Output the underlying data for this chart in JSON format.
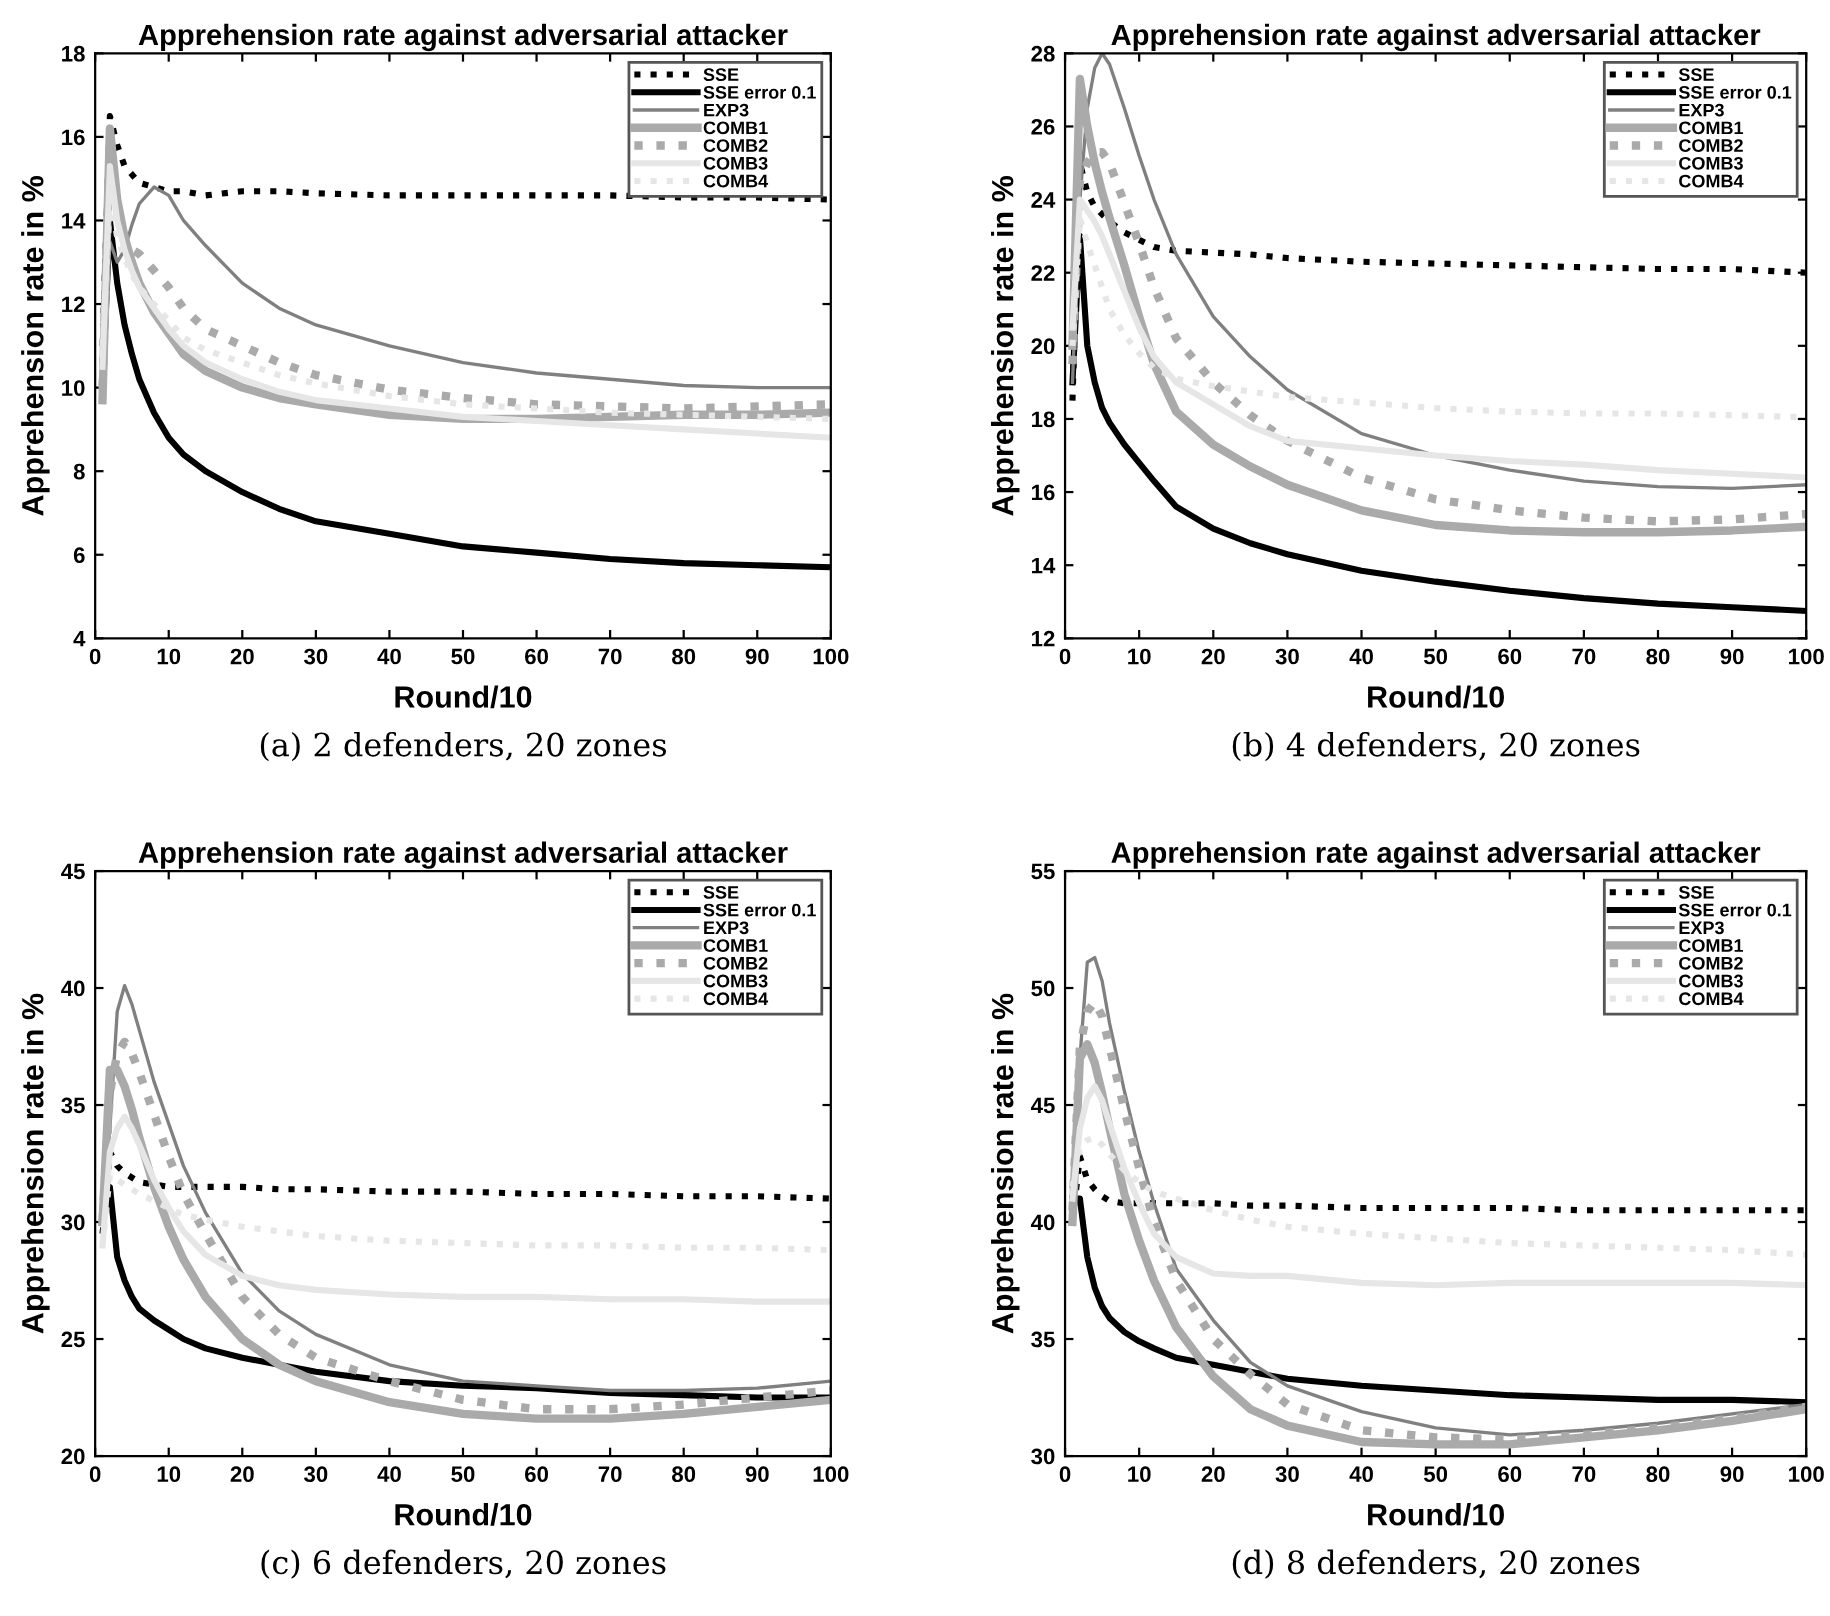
{
  "chart_data": [
    {
      "type": "line",
      "title": "Apprehension rate against adversarial attacker",
      "xlabel": "Round/10",
      "ylabel": "Apprehension rate in %",
      "annotations": [
        "(a) 2 defenders, 20 zones"
      ],
      "legend": "top right",
      "grid": false,
      "xlim": [
        0,
        100
      ],
      "xticks": [
        0,
        10,
        20,
        30,
        40,
        50,
        60,
        70,
        80,
        90,
        100
      ],
      "ylim": [
        4,
        18
      ],
      "yticks": [
        4,
        6,
        8,
        10,
        12,
        14,
        16,
        18
      ],
      "x": [
        1,
        2,
        3,
        4,
        5,
        6,
        8,
        10,
        12,
        15,
        20,
        25,
        30,
        40,
        50,
        60,
        70,
        80,
        90,
        100
      ],
      "series": [
        {
          "name": "SSE",
          "color": "#000000",
          "line_style": "dotted",
          "values": [
            11,
            16.5,
            15.8,
            15.3,
            15.1,
            14.9,
            14.8,
            14.7,
            14.7,
            14.6,
            14.7,
            14.7,
            14.65,
            14.6,
            14.6,
            14.6,
            14.6,
            14.55,
            14.55,
            14.5
          ]
        },
        {
          "name": "SSE error 0.1",
          "color": "#000000",
          "line_style": "solid",
          "values": [
            10,
            14,
            12.5,
            11.5,
            10.8,
            10.2,
            9.4,
            8.8,
            8.4,
            8.0,
            7.5,
            7.1,
            6.8,
            6.5,
            6.2,
            6.05,
            5.9,
            5.8,
            5.75,
            5.7
          ]
        },
        {
          "name": "EXP3",
          "color": "#808080",
          "line_style": "solid",
          "values": [
            9.7,
            13.5,
            13.0,
            13.3,
            13.9,
            14.4,
            14.8,
            14.6,
            14.0,
            13.4,
            12.5,
            11.9,
            11.5,
            11.0,
            10.6,
            10.35,
            10.2,
            10.05,
            10.0,
            10.0
          ]
        },
        {
          "name": "COMB1",
          "color": "#aaaaaa",
          "line_style": "solid",
          "values": [
            9.7,
            16.2,
            14.5,
            13.6,
            13.0,
            12.5,
            11.8,
            11.3,
            10.8,
            10.4,
            10.0,
            9.75,
            9.6,
            9.35,
            9.25,
            9.25,
            9.3,
            9.35,
            9.35,
            9.4
          ]
        },
        {
          "name": "COMB2",
          "color": "#aaaaaa",
          "line_style": "dotted",
          "values": [
            10,
            15.8,
            14.2,
            13.6,
            13.3,
            13.2,
            12.8,
            12.4,
            11.9,
            11.4,
            11.0,
            10.6,
            10.3,
            9.95,
            9.75,
            9.6,
            9.55,
            9.5,
            9.55,
            9.6
          ]
        },
        {
          "name": "COMB3",
          "color": "#e6e6e6",
          "line_style": "solid",
          "values": [
            10.5,
            15.3,
            14.0,
            13.3,
            12.8,
            12.4,
            11.9,
            11.4,
            11.0,
            10.6,
            10.2,
            9.9,
            9.7,
            9.5,
            9.3,
            9.2,
            9.1,
            9.0,
            8.9,
            8.8
          ]
        },
        {
          "name": "COMB4",
          "color": "#e6e6e6",
          "line_style": "dotted",
          "values": [
            11,
            14.5,
            13.6,
            13.1,
            12.7,
            12.4,
            12.0,
            11.6,
            11.2,
            10.9,
            10.6,
            10.3,
            10.1,
            9.8,
            9.6,
            9.5,
            9.4,
            9.35,
            9.3,
            9.25
          ]
        }
      ]
    },
    {
      "type": "line",
      "title": "Apprehension rate against adversarial attacker",
      "xlabel": "Round/10",
      "ylabel": "Apprehension rate in %",
      "annotations": [
        "(b) 4 defenders, 20 zones"
      ],
      "legend": "top right",
      "grid": false,
      "xlim": [
        0,
        100
      ],
      "xticks": [
        0,
        10,
        20,
        30,
        40,
        50,
        60,
        70,
        80,
        90,
        100
      ],
      "ylim": [
        12,
        28
      ],
      "yticks": [
        12,
        14,
        16,
        18,
        20,
        22,
        24,
        26,
        28
      ],
      "x": [
        1,
        2,
        3,
        4,
        5,
        6,
        8,
        10,
        12,
        15,
        20,
        25,
        30,
        40,
        50,
        60,
        70,
        80,
        90,
        100
      ],
      "series": [
        {
          "name": "SSE",
          "color": "#000000",
          "line_style": "dotted",
          "values": [
            18.5,
            25,
            24.2,
            23.8,
            23.6,
            23.4,
            23.1,
            22.9,
            22.7,
            22.6,
            22.55,
            22.5,
            22.4,
            22.3,
            22.25,
            22.2,
            22.15,
            22.1,
            22.1,
            22.0
          ]
        },
        {
          "name": "SSE error 0.1",
          "color": "#000000",
          "line_style": "solid",
          "values": [
            19,
            23,
            20,
            19,
            18.3,
            17.9,
            17.3,
            16.8,
            16.3,
            15.6,
            15.0,
            14.6,
            14.3,
            13.85,
            13.55,
            13.3,
            13.1,
            12.95,
            12.85,
            12.75
          ]
        },
        {
          "name": "EXP3",
          "color": "#808080",
          "line_style": "solid",
          "values": [
            19,
            24,
            26.5,
            27.6,
            28,
            27.7,
            26.5,
            25.2,
            24,
            22.5,
            20.8,
            19.7,
            18.8,
            17.6,
            17.0,
            16.6,
            16.3,
            16.15,
            16.1,
            16.2
          ]
        },
        {
          "name": "COMB1",
          "color": "#aaaaaa",
          "line_style": "solid",
          "values": [
            20,
            27.3,
            26,
            25,
            24.2,
            23.5,
            22.2,
            20.8,
            19.5,
            18.2,
            17.3,
            16.7,
            16.2,
            15.5,
            15.1,
            14.95,
            14.9,
            14.9,
            14.95,
            15.05
          ]
        },
        {
          "name": "COMB2",
          "color": "#aaaaaa",
          "line_style": "dotted",
          "values": [
            19.5,
            24.5,
            25,
            25.3,
            25.3,
            25,
            23.9,
            22.8,
            21.6,
            20.2,
            19.0,
            18.1,
            17.4,
            16.4,
            15.8,
            15.5,
            15.3,
            15.2,
            15.25,
            15.4
          ]
        },
        {
          "name": "COMB3",
          "color": "#e6e6e6",
          "line_style": "solid",
          "values": [
            20.5,
            24,
            23.7,
            23.4,
            23.0,
            22.5,
            21.5,
            20.5,
            19.7,
            19.0,
            18.4,
            17.8,
            17.4,
            17.2,
            17.0,
            16.85,
            16.75,
            16.6,
            16.5,
            16.4
          ]
        },
        {
          "name": "COMB4",
          "color": "#e6e6e6",
          "line_style": "dotted",
          "values": [
            20,
            23.5,
            22.8,
            22.2,
            21.6,
            21.0,
            20.3,
            19.8,
            19.4,
            19.1,
            18.9,
            18.75,
            18.6,
            18.45,
            18.3,
            18.2,
            18.15,
            18.15,
            18.1,
            18.05
          ]
        }
      ]
    },
    {
      "type": "line",
      "title": "Apprehension rate against adversarial attacker",
      "xlabel": "Round/10",
      "ylabel": "Apprehension rate in %",
      "annotations": [
        "(c) 6 defenders, 20 zones"
      ],
      "legend": "top right",
      "grid": false,
      "xlim": [
        0,
        100
      ],
      "xticks": [
        0,
        10,
        20,
        30,
        40,
        50,
        60,
        70,
        80,
        90,
        100
      ],
      "ylim": [
        20,
        45
      ],
      "yticks": [
        20,
        25,
        30,
        35,
        40,
        45
      ],
      "x": [
        1,
        2,
        3,
        4,
        5,
        6,
        8,
        10,
        12,
        15,
        20,
        25,
        30,
        40,
        50,
        60,
        70,
        80,
        90,
        100
      ],
      "series": [
        {
          "name": "SSE",
          "color": "#000000",
          "line_style": "dotted",
          "values": [
            29.5,
            33,
            32.4,
            32.1,
            31.9,
            31.7,
            31.6,
            31.5,
            31.5,
            31.5,
            31.5,
            31.4,
            31.4,
            31.3,
            31.3,
            31.2,
            31.2,
            31.1,
            31.1,
            31.0
          ]
        },
        {
          "name": "SSE error 0.1",
          "color": "#000000",
          "line_style": "solid",
          "values": [
            30,
            31.5,
            28.5,
            27.5,
            26.8,
            26.3,
            25.8,
            25.4,
            25.0,
            24.6,
            24.2,
            23.9,
            23.6,
            23.2,
            23.0,
            22.9,
            22.7,
            22.6,
            22.5,
            22.5
          ]
        },
        {
          "name": "EXP3",
          "color": "#808080",
          "line_style": "solid",
          "values": [
            30,
            34,
            39,
            40.1,
            39.3,
            38.2,
            36,
            34.2,
            32.4,
            30.4,
            27.8,
            26.2,
            25.2,
            23.9,
            23.2,
            23.0,
            22.8,
            22.8,
            22.9,
            23.2
          ]
        },
        {
          "name": "COMB1",
          "color": "#aaaaaa",
          "line_style": "solid",
          "values": [
            30,
            36.5,
            36.5,
            35.8,
            34.8,
            33.6,
            31.5,
            29.8,
            28.4,
            26.8,
            25.0,
            23.9,
            23.2,
            22.3,
            21.8,
            21.6,
            21.6,
            21.8,
            22.1,
            22.4
          ]
        },
        {
          "name": "COMB2",
          "color": "#aaaaaa",
          "line_style": "dotted",
          "values": [
            30,
            35.5,
            37.2,
            37.7,
            37.2,
            36.4,
            34.6,
            32.8,
            31.2,
            29.5,
            26.8,
            25.2,
            24.2,
            23.2,
            22.4,
            22.0,
            22.0,
            22.2,
            22.5,
            22.8
          ]
        },
        {
          "name": "COMB3",
          "color": "#e6e6e6",
          "line_style": "solid",
          "values": [
            29,
            33,
            34,
            34.5,
            34.0,
            33.3,
            31.8,
            30.6,
            29.6,
            28.6,
            27.7,
            27.3,
            27.1,
            26.9,
            26.8,
            26.8,
            26.7,
            26.7,
            26.6,
            26.6
          ]
        },
        {
          "name": "COMB4",
          "color": "#e6e6e6",
          "line_style": "dotted",
          "values": [
            29,
            32,
            31.8,
            31.6,
            31.4,
            31.2,
            30.9,
            30.6,
            30.3,
            30.1,
            29.8,
            29.6,
            29.4,
            29.2,
            29.1,
            29.0,
            29.0,
            28.9,
            28.9,
            28.8
          ]
        }
      ]
    },
    {
      "type": "line",
      "title": "Apprehension rate against adversarial attacker",
      "xlabel": "Round/10",
      "ylabel": "Apprehension rate in %",
      "annotations": [
        "(d) 8 defenders, 20 zones"
      ],
      "legend": "top right",
      "grid": false,
      "xlim": [
        0,
        100
      ],
      "xticks": [
        0,
        10,
        20,
        30,
        40,
        50,
        60,
        70,
        80,
        90,
        100
      ],
      "ylim": [
        30,
        55
      ],
      "yticks": [
        30,
        35,
        40,
        45,
        50,
        55
      ],
      "x": [
        1,
        2,
        3,
        4,
        5,
        6,
        8,
        10,
        12,
        15,
        20,
        25,
        30,
        40,
        50,
        60,
        70,
        80,
        90,
        100
      ],
      "series": [
        {
          "name": "SSE",
          "color": "#000000",
          "line_style": "dotted",
          "values": [
            40,
            42.8,
            41.8,
            41.4,
            41.1,
            40.9,
            40.8,
            40.8,
            40.8,
            40.8,
            40.8,
            40.7,
            40.7,
            40.6,
            40.6,
            40.6,
            40.5,
            40.5,
            40.5,
            40.5
          ]
        },
        {
          "name": "SSE error 0.1",
          "color": "#000000",
          "line_style": "solid",
          "values": [
            41,
            41,
            38.5,
            37.2,
            36.4,
            35.9,
            35.3,
            34.9,
            34.6,
            34.2,
            33.9,
            33.6,
            33.3,
            33.0,
            32.8,
            32.6,
            32.5,
            32.4,
            32.4,
            32.3
          ]
        },
        {
          "name": "EXP3",
          "color": "#808080",
          "line_style": "solid",
          "values": [
            41,
            47,
            51.1,
            51.3,
            50.3,
            48.5,
            45.6,
            43.0,
            40.8,
            38.0,
            35.8,
            34.0,
            33.0,
            31.9,
            31.2,
            30.9,
            31.1,
            31.4,
            31.8,
            32.2
          ]
        },
        {
          "name": "COMB1",
          "color": "#aaaaaa",
          "line_style": "solid",
          "values": [
            40,
            47,
            47.6,
            46.8,
            45.5,
            44,
            41.2,
            39.2,
            37.5,
            35.5,
            33.4,
            32.0,
            31.3,
            30.6,
            30.5,
            30.5,
            30.8,
            31.1,
            31.5,
            32.0
          ]
        },
        {
          "name": "COMB2",
          "color": "#aaaaaa",
          "line_style": "dotted",
          "values": [
            40.5,
            47.5,
            49,
            49.4,
            48.8,
            47.5,
            44.8,
            42.3,
            40.0,
            37.5,
            35.0,
            33.5,
            32.2,
            31.1,
            30.8,
            30.7,
            30.9,
            31.2,
            31.6,
            32.1
          ]
        },
        {
          "name": "COMB3",
          "color": "#e6e6e6",
          "line_style": "solid",
          "values": [
            41,
            44,
            45.3,
            45.8,
            45.2,
            44.2,
            42.3,
            40.8,
            39.5,
            38.5,
            37.8,
            37.7,
            37.7,
            37.4,
            37.3,
            37.4,
            37.4,
            37.4,
            37.4,
            37.3
          ]
        },
        {
          "name": "COMB4",
          "color": "#e6e6e6",
          "line_style": "dotted",
          "values": [
            41.5,
            43.2,
            43.5,
            43.6,
            43.3,
            42.9,
            42.2,
            41.7,
            41.3,
            41.0,
            40.5,
            40.1,
            39.8,
            39.5,
            39.3,
            39.1,
            39.0,
            38.9,
            38.8,
            38.6
          ]
        }
      ]
    }
  ]
}
